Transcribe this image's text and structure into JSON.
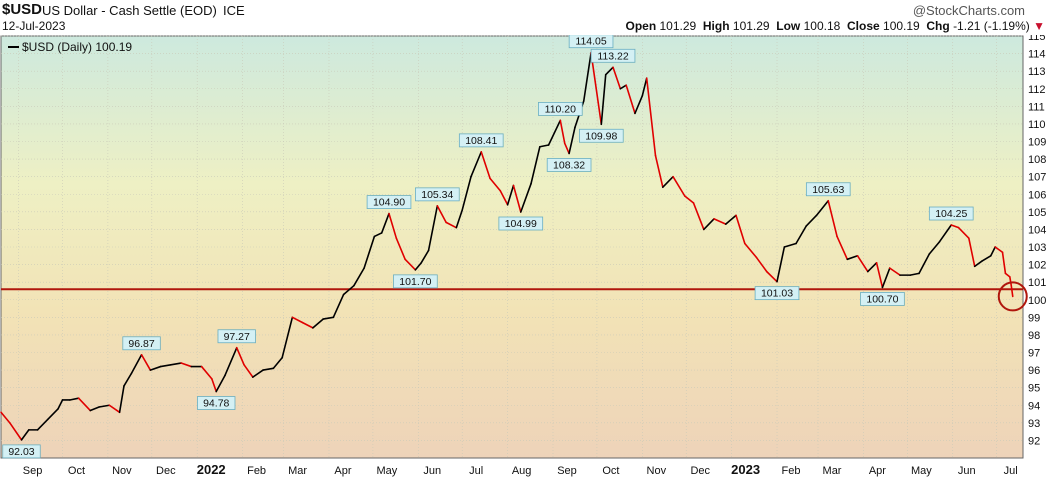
{
  "header": {
    "symbol": "$USD",
    "name": "US Dollar - Cash Settle (EOD)",
    "exchange": "ICE",
    "watermark": "@StockCharts.com",
    "date": "12-Jul-2023",
    "open_label": "Open",
    "open": "101.29",
    "high_label": "High",
    "high": "101.29",
    "low_label": "Low",
    "low": "100.18",
    "close_label": "Close",
    "close": "100.19",
    "chg_label": "Chg",
    "chg": "-1.21 (-1.19%)",
    "chg_arrow": "▼"
  },
  "legend": {
    "text": "$USD (Daily) 100.19",
    "color": "#000000"
  },
  "colors": {
    "up": "#000000",
    "down": "#e00000",
    "hline": "#b0160c",
    "circle": "#b0160c",
    "label_bg": "#d4f0f4",
    "label_border": "#6aaec0"
  },
  "chart_data": {
    "type": "line",
    "y_axis": {
      "min": 91,
      "max": 115,
      "position": "right",
      "ticks": [
        92,
        93,
        94,
        95,
        96,
        97,
        98,
        99,
        100,
        101,
        102,
        103,
        104,
        105,
        106,
        107,
        108,
        109,
        110,
        111,
        112,
        113,
        114,
        115
      ]
    },
    "x_ticks": [
      "Sep",
      "Oct",
      "Nov",
      "Dec",
      "2022",
      "Feb",
      "Mar",
      "Apr",
      "May",
      "Jun",
      "Jul",
      "Aug",
      "Sep",
      "Oct",
      "Nov",
      "Dec",
      "2023",
      "Feb",
      "Mar",
      "Apr",
      "May",
      "Jun",
      "Jul"
    ],
    "grid": true,
    "horizontal_line": 100.6,
    "circle_at": {
      "date": "2023-07-12",
      "y": 100.19
    },
    "annotations": [
      {
        "text": "92.03",
        "date": "2021-09-03",
        "y": 92.03
      },
      {
        "text": "96.87",
        "date": "2021-11-24",
        "y": 96.87
      },
      {
        "text": "97.27",
        "date": "2022-01-28",
        "y": 97.27
      },
      {
        "text": "94.78",
        "date": "2022-01-14",
        "y": 94.78
      },
      {
        "text": "104.90",
        "date": "2022-05-12",
        "y": 104.9
      },
      {
        "text": "101.70",
        "date": "2022-05-30",
        "y": 101.7
      },
      {
        "text": "105.34",
        "date": "2022-06-14",
        "y": 105.34
      },
      {
        "text": "108.41",
        "date": "2022-07-14",
        "y": 108.41
      },
      {
        "text": "104.99",
        "date": "2022-08-10",
        "y": 104.99
      },
      {
        "text": "110.20",
        "date": "2022-09-06",
        "y": 110.2
      },
      {
        "text": "108.32",
        "date": "2022-09-12",
        "y": 108.32
      },
      {
        "text": "114.05",
        "date": "2022-09-27",
        "y": 114.05
      },
      {
        "text": "109.98",
        "date": "2022-10-04",
        "y": 109.98
      },
      {
        "text": "113.22",
        "date": "2022-10-12",
        "y": 113.22
      },
      {
        "text": "101.03",
        "date": "2023-02-01",
        "y": 101.03
      },
      {
        "text": "105.63",
        "date": "2023-03-08",
        "y": 105.63
      },
      {
        "text": "100.70",
        "date": "2023-04-14",
        "y": 100.7
      },
      {
        "text": "104.25",
        "date": "2023-05-31",
        "y": 104.25
      }
    ],
    "series": [
      {
        "points": [
          [
            "2021-08-20",
            93.6
          ],
          [
            "2021-08-26",
            93.0
          ],
          [
            "2021-09-03",
            92.03
          ],
          [
            "2021-09-08",
            92.6
          ],
          [
            "2021-09-14",
            92.6
          ],
          [
            "2021-09-21",
            93.2
          ],
          [
            "2021-09-28",
            93.8
          ],
          [
            "2021-10-01",
            94.3
          ],
          [
            "2021-10-06",
            94.3
          ],
          [
            "2021-10-12",
            94.4
          ],
          [
            "2021-10-20",
            93.7
          ],
          [
            "2021-10-26",
            93.9
          ],
          [
            "2021-11-02",
            94.0
          ],
          [
            "2021-11-09",
            93.6
          ],
          [
            "2021-11-12",
            95.1
          ],
          [
            "2021-11-17",
            95.8
          ],
          [
            "2021-11-24",
            96.87
          ],
          [
            "2021-11-30",
            96.0
          ],
          [
            "2021-12-07",
            96.2
          ],
          [
            "2021-12-14",
            96.3
          ],
          [
            "2021-12-21",
            96.4
          ],
          [
            "2021-12-28",
            96.2
          ],
          [
            "2022-01-04",
            96.2
          ],
          [
            "2022-01-11",
            95.5
          ],
          [
            "2022-01-14",
            94.78
          ],
          [
            "2022-01-20",
            95.7
          ],
          [
            "2022-01-28",
            97.27
          ],
          [
            "2022-02-02",
            96.3
          ],
          [
            "2022-02-08",
            95.6
          ],
          [
            "2022-02-15",
            96.0
          ],
          [
            "2022-02-22",
            96.1
          ],
          [
            "2022-02-28",
            96.7
          ],
          [
            "2022-03-07",
            99.0
          ],
          [
            "2022-03-14",
            98.7
          ],
          [
            "2022-03-21",
            98.4
          ],
          [
            "2022-03-28",
            98.9
          ],
          [
            "2022-04-04",
            99.0
          ],
          [
            "2022-04-11",
            100.3
          ],
          [
            "2022-04-18",
            100.8
          ],
          [
            "2022-04-25",
            101.8
          ],
          [
            "2022-05-02",
            103.6
          ],
          [
            "2022-05-07",
            103.8
          ],
          [
            "2022-05-12",
            104.9
          ],
          [
            "2022-05-17",
            103.5
          ],
          [
            "2022-05-23",
            102.3
          ],
          [
            "2022-05-30",
            101.7
          ],
          [
            "2022-06-03",
            102.1
          ],
          [
            "2022-06-08",
            102.8
          ],
          [
            "2022-06-14",
            105.34
          ],
          [
            "2022-06-20",
            104.4
          ],
          [
            "2022-06-27",
            104.1
          ],
          [
            "2022-07-01",
            105.1
          ],
          [
            "2022-07-07",
            107.0
          ],
          [
            "2022-07-14",
            108.41
          ],
          [
            "2022-07-20",
            106.9
          ],
          [
            "2022-07-27",
            106.2
          ],
          [
            "2022-08-01",
            105.4
          ],
          [
            "2022-08-05",
            106.5
          ],
          [
            "2022-08-10",
            104.99
          ],
          [
            "2022-08-17",
            106.6
          ],
          [
            "2022-08-23",
            108.7
          ],
          [
            "2022-08-29",
            108.8
          ],
          [
            "2022-09-06",
            110.2
          ],
          [
            "2022-09-09",
            108.9
          ],
          [
            "2022-09-12",
            108.32
          ],
          [
            "2022-09-16",
            109.8
          ],
          [
            "2022-09-22",
            111.3
          ],
          [
            "2022-09-27",
            114.05
          ],
          [
            "2022-10-04",
            109.98
          ],
          [
            "2022-10-07",
            112.8
          ],
          [
            "2022-10-12",
            113.22
          ],
          [
            "2022-10-17",
            112.0
          ],
          [
            "2022-10-21",
            112.2
          ],
          [
            "2022-10-27",
            110.6
          ],
          [
            "2022-11-01",
            111.6
          ],
          [
            "2022-11-04",
            112.6
          ],
          [
            "2022-11-10",
            108.2
          ],
          [
            "2022-11-15",
            106.4
          ],
          [
            "2022-11-22",
            107.0
          ],
          [
            "2022-11-30",
            105.9
          ],
          [
            "2022-12-06",
            105.5
          ],
          [
            "2022-12-13",
            104.0
          ],
          [
            "2022-12-20",
            104.6
          ],
          [
            "2022-12-28",
            104.3
          ],
          [
            "2023-01-04",
            104.8
          ],
          [
            "2023-01-10",
            103.2
          ],
          [
            "2023-01-18",
            102.4
          ],
          [
            "2023-01-25",
            101.6
          ],
          [
            "2023-02-01",
            101.03
          ],
          [
            "2023-02-06",
            103.0
          ],
          [
            "2023-02-14",
            103.2
          ],
          [
            "2023-02-21",
            104.2
          ],
          [
            "2023-02-28",
            104.8
          ],
          [
            "2023-03-08",
            105.63
          ],
          [
            "2023-03-14",
            103.6
          ],
          [
            "2023-03-21",
            102.3
          ],
          [
            "2023-03-28",
            102.5
          ],
          [
            "2023-04-04",
            101.6
          ],
          [
            "2023-04-10",
            102.1
          ],
          [
            "2023-04-14",
            100.7
          ],
          [
            "2023-04-19",
            101.8
          ],
          [
            "2023-04-26",
            101.4
          ],
          [
            "2023-05-03",
            101.4
          ],
          [
            "2023-05-09",
            101.5
          ],
          [
            "2023-05-16",
            102.6
          ],
          [
            "2023-05-23",
            103.3
          ],
          [
            "2023-05-31",
            104.25
          ],
          [
            "2023-06-05",
            104.1
          ],
          [
            "2023-06-12",
            103.5
          ],
          [
            "2023-06-16",
            101.9
          ],
          [
            "2023-06-21",
            102.2
          ],
          [
            "2023-06-27",
            102.5
          ],
          [
            "2023-06-30",
            103.0
          ],
          [
            "2023-07-05",
            102.7
          ],
          [
            "2023-07-07",
            101.5
          ],
          [
            "2023-07-10",
            101.3
          ],
          [
            "2023-07-11",
            100.8
          ],
          [
            "2023-07-12",
            100.19
          ]
        ]
      }
    ]
  }
}
